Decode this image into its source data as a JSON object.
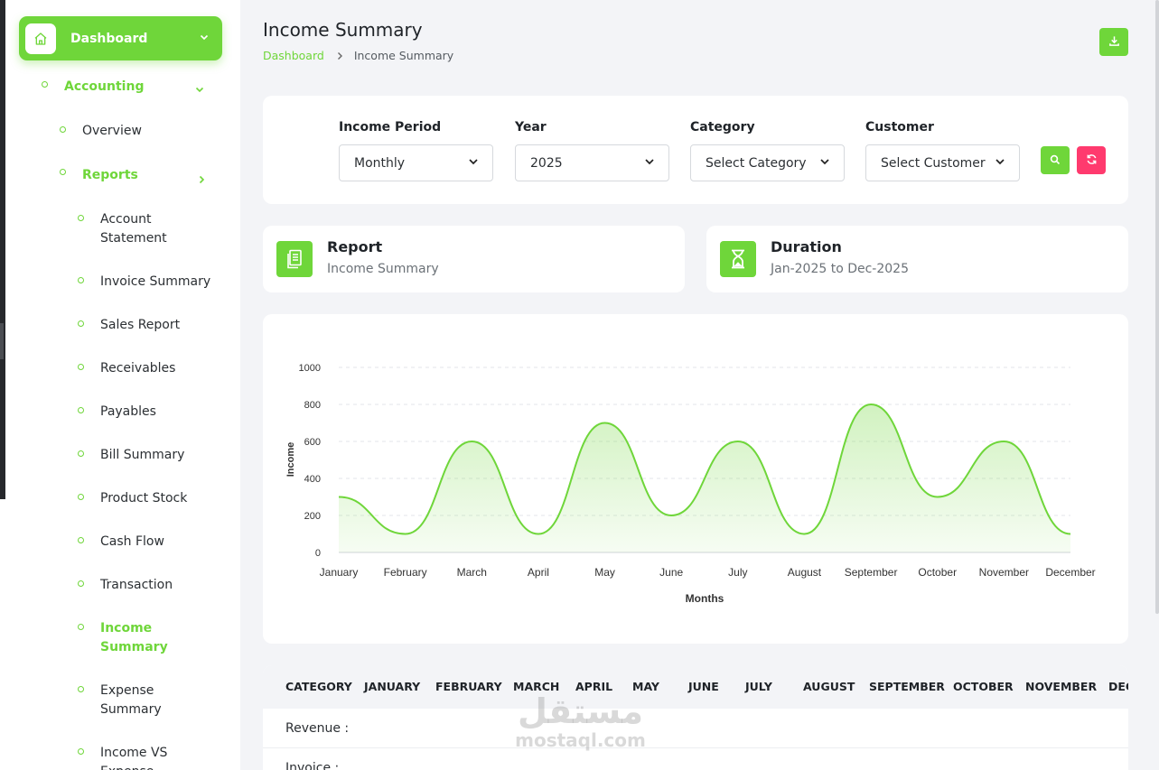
{
  "sidebar": {
    "dashboard_label": "Dashboard",
    "accounting_label": "Accounting",
    "overview_label": "Overview",
    "reports_label": "Reports",
    "reports": [
      {
        "line1": "Account",
        "line2": "Statement"
      },
      {
        "line1": "Invoice Summary",
        "line2": ""
      },
      {
        "line1": "Sales Report",
        "line2": ""
      },
      {
        "line1": "Receivables",
        "line2": ""
      },
      {
        "line1": "Payables",
        "line2": ""
      },
      {
        "line1": "Bill Summary",
        "line2": ""
      },
      {
        "line1": "Product Stock",
        "line2": ""
      },
      {
        "line1": "Cash Flow",
        "line2": ""
      },
      {
        "line1": "Transaction",
        "line2": ""
      },
      {
        "line1": "Income",
        "line2": "Summary"
      },
      {
        "line1": "Expense",
        "line2": "Summary"
      },
      {
        "line1": "Income VS",
        "line2": "Expense"
      }
    ],
    "active_report": 9
  },
  "header": {
    "title": "Income Summary",
    "breadcrumb": [
      "Dashboard",
      "Income Summary"
    ]
  },
  "filters": {
    "period": {
      "label": "Income Period",
      "value": "Monthly"
    },
    "year": {
      "label": "Year",
      "value": "2025"
    },
    "category": {
      "label": "Category",
      "value": "Select Category"
    },
    "customer": {
      "label": "Customer",
      "value": "Select Customer"
    }
  },
  "info": {
    "report": {
      "title": "Report",
      "value": "Income Summary"
    },
    "duration": {
      "title": "Duration",
      "value": "Jan-2025 to Dec-2025"
    }
  },
  "colors": {
    "accent": "#6fd63a",
    "reset": "#ff3a6e"
  },
  "chart_data": {
    "type": "area",
    "categories": [
      "January",
      "February",
      "March",
      "April",
      "May",
      "June",
      "July",
      "August",
      "September",
      "October",
      "November",
      "December"
    ],
    "series": [
      {
        "values": [
          300,
          100,
          600,
          100,
          700,
          200,
          600,
          100,
          800,
          300,
          600,
          100
        ]
      }
    ],
    "xlabel": "Months",
    "ylabel": "Income",
    "ylim": [
      0,
      1000
    ],
    "yticks": [
      0,
      200,
      400,
      600,
      800,
      1000
    ],
    "grid": true,
    "smooth": true
  },
  "table": {
    "headers": [
      "CATEGORY",
      "JANUARY",
      "FEBRUARY",
      "MARCH",
      "APRIL",
      "MAY",
      "JUNE",
      "JULY",
      "AUGUST",
      "SEPTEMBER",
      "OCTOBER",
      "NOVEMBER",
      "DEC"
    ],
    "rows": [
      "Revenue :",
      "Invoice :"
    ]
  },
  "watermark": {
    "arabic": "مستقل",
    "latin": "mostaql.com"
  }
}
